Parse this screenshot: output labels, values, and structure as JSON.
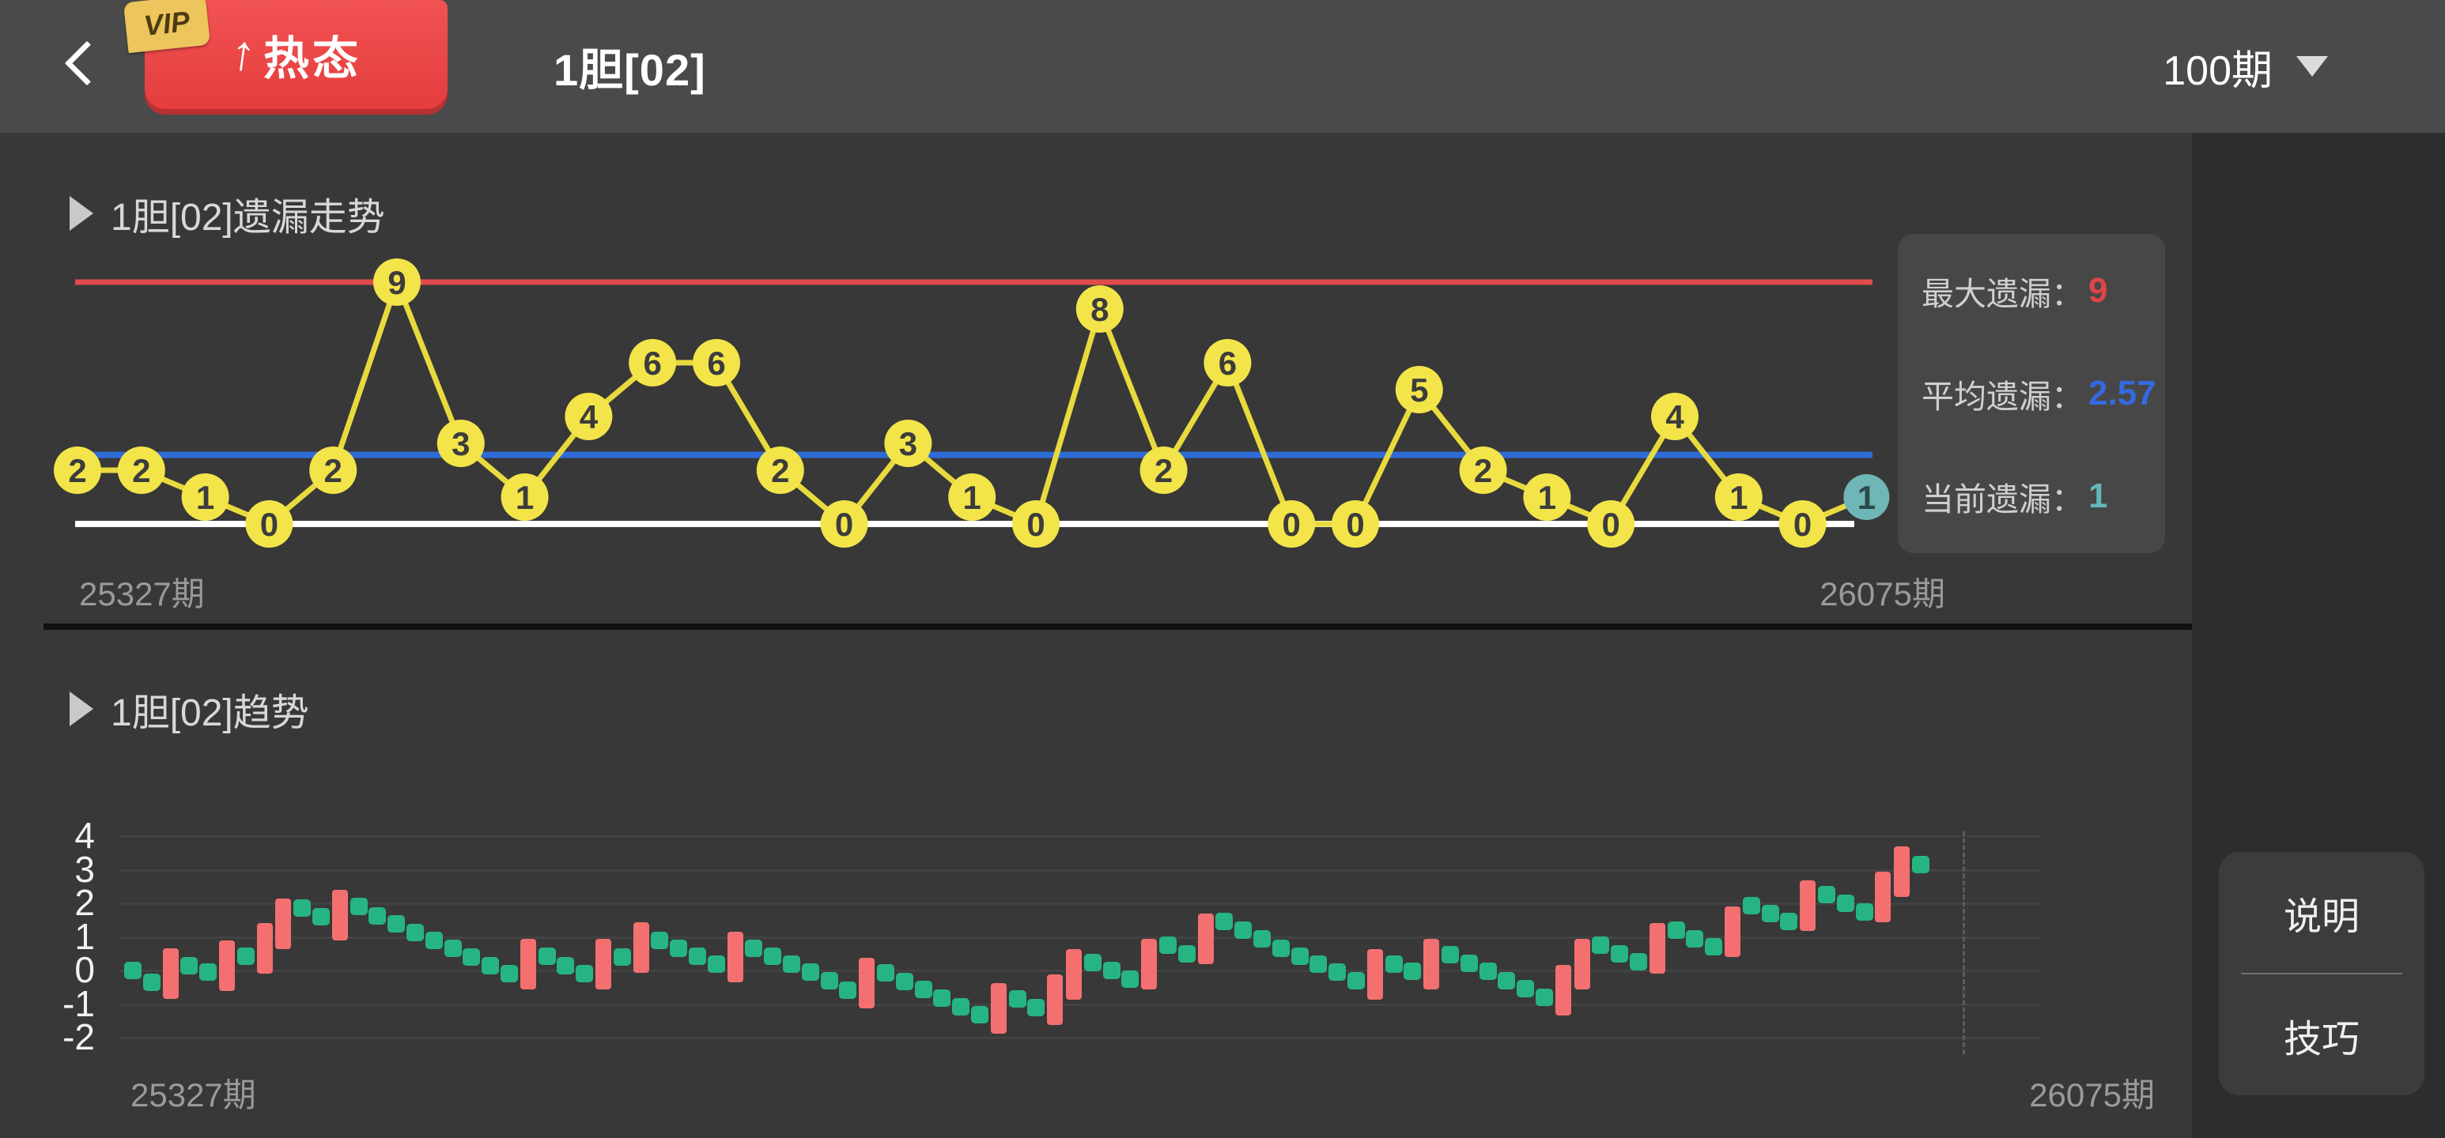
{
  "top_bar": {
    "back_icon": "chevron-left",
    "badge": {
      "vip": "VIP",
      "arrow": "↑",
      "label": "热态"
    },
    "title": "1胆[02]",
    "period_selector": {
      "label": "100期",
      "icon": "caret-down"
    }
  },
  "omission_section": {
    "header": "1胆[02]遗漏走势",
    "x_start_label": "25327期",
    "x_end_label": "26075期",
    "stats": [
      {
        "label": "最大遗漏：",
        "value": "9",
        "color": "#e04545"
      },
      {
        "label": "平均遗漏：",
        "value": "2.57",
        "color": "#3569e0"
      },
      {
        "label": "当前遗漏：",
        "value": "1",
        "color": "#63b7b7"
      }
    ]
  },
  "trend_section": {
    "header": "1胆[02]趋势",
    "x_start_label": "25327期",
    "x_end_label": "26075期",
    "buttons": [
      "说明",
      "技巧"
    ]
  },
  "chart_data": [
    {
      "type": "line",
      "title": "1胆[02]遗漏走势",
      "values": [
        2,
        2,
        1,
        0,
        2,
        9,
        3,
        1,
        4,
        6,
        6,
        2,
        0,
        3,
        1,
        0,
        8,
        2,
        6,
        0,
        0,
        5,
        2,
        1,
        0,
        4,
        1,
        0,
        1
      ],
      "current_index": 28,
      "max_line_value": 9,
      "avg_line_value": 2.57,
      "zero_line_value": 0,
      "x_range": [
        "25327期",
        "26075期"
      ],
      "point_color": "#f3e44a",
      "point_text_color": "#3c3c3c",
      "current_point_color": "#6fb6b6",
      "line_color": "#e8da3e",
      "max_line_color": "#e04b4b",
      "avg_line_color": "#2e6bd6",
      "zero_line_color": "#ffffff"
    },
    {
      "type": "bar",
      "title": "1胆[02]趋势",
      "ylim": [
        -2,
        4
      ],
      "yticks": [
        4,
        3,
        2,
        1,
        0,
        -1,
        -2
      ],
      "grid": true,
      "x_range": [
        "25327期",
        "26075期"
      ],
      "dot_color": "#26b582",
      "bar_color": "#f47070",
      "marks": [
        {
          "t": "d",
          "v": 0.0
        },
        {
          "t": "d",
          "v": -0.35
        },
        {
          "t": "b",
          "v": -0.1
        },
        {
          "t": "d",
          "v": 0.15
        },
        {
          "t": "d",
          "v": -0.05
        },
        {
          "t": "b",
          "v": 0.15
        },
        {
          "t": "d",
          "v": 0.42
        },
        {
          "t": "b",
          "v": 0.65
        },
        {
          "t": "b",
          "v": 1.4
        },
        {
          "t": "d",
          "v": 1.85
        },
        {
          "t": "d",
          "v": 1.6
        },
        {
          "t": "b",
          "v": 1.65
        },
        {
          "t": "d",
          "v": 1.9
        },
        {
          "t": "d",
          "v": 1.62
        },
        {
          "t": "d",
          "v": 1.38
        },
        {
          "t": "d",
          "v": 1.12
        },
        {
          "t": "d",
          "v": 0.9
        },
        {
          "t": "d",
          "v": 0.65
        },
        {
          "t": "d",
          "v": 0.4
        },
        {
          "t": "d",
          "v": 0.15
        },
        {
          "t": "d",
          "v": -0.1
        },
        {
          "t": "b",
          "v": 0.18
        },
        {
          "t": "d",
          "v": 0.43
        },
        {
          "t": "d",
          "v": 0.15
        },
        {
          "t": "d",
          "v": -0.1
        },
        {
          "t": "b",
          "v": 0.18
        },
        {
          "t": "d",
          "v": 0.4
        },
        {
          "t": "b",
          "v": 0.68
        },
        {
          "t": "d",
          "v": 0.9
        },
        {
          "t": "d",
          "v": 0.65
        },
        {
          "t": "d",
          "v": 0.42
        },
        {
          "t": "d",
          "v": 0.2
        },
        {
          "t": "b",
          "v": 0.4
        },
        {
          "t": "d",
          "v": 0.65
        },
        {
          "t": "d",
          "v": 0.42
        },
        {
          "t": "d",
          "v": 0.2
        },
        {
          "t": "d",
          "v": -0.05
        },
        {
          "t": "d",
          "v": -0.3
        },
        {
          "t": "d",
          "v": -0.58
        },
        {
          "t": "b",
          "v": -0.38
        },
        {
          "t": "d",
          "v": -0.08
        },
        {
          "t": "d",
          "v": -0.32
        },
        {
          "t": "d",
          "v": -0.56
        },
        {
          "t": "d",
          "v": -0.82
        },
        {
          "t": "d",
          "v": -1.08
        },
        {
          "t": "d",
          "v": -1.32
        },
        {
          "t": "b",
          "v": -1.12
        },
        {
          "t": "d",
          "v": -0.85
        },
        {
          "t": "d",
          "v": -1.1
        },
        {
          "t": "b",
          "v": -0.88
        },
        {
          "t": "b",
          "v": -0.12
        },
        {
          "t": "d",
          "v": 0.23
        },
        {
          "t": "d",
          "v": 0.0
        },
        {
          "t": "d",
          "v": -0.25
        },
        {
          "t": "b",
          "v": 0.18
        },
        {
          "t": "d",
          "v": 0.75
        },
        {
          "t": "d",
          "v": 0.5
        },
        {
          "t": "b",
          "v": 0.93
        },
        {
          "t": "d",
          "v": 1.45
        },
        {
          "t": "d",
          "v": 1.2
        },
        {
          "t": "d",
          "v": 0.95
        },
        {
          "t": "d",
          "v": 0.65
        },
        {
          "t": "d",
          "v": 0.43
        },
        {
          "t": "d",
          "v": 0.2
        },
        {
          "t": "d",
          "v": -0.05
        },
        {
          "t": "d",
          "v": -0.3
        },
        {
          "t": "b",
          "v": -0.12
        },
        {
          "t": "d",
          "v": 0.2
        },
        {
          "t": "d",
          "v": -0.03
        },
        {
          "t": "b",
          "v": 0.18
        },
        {
          "t": "d",
          "v": 0.48
        },
        {
          "t": "d",
          "v": 0.22
        },
        {
          "t": "d",
          "v": -0.02
        },
        {
          "t": "d",
          "v": -0.3
        },
        {
          "t": "d",
          "v": -0.55
        },
        {
          "t": "d",
          "v": -0.8
        },
        {
          "t": "b",
          "v": -0.58
        },
        {
          "t": "b",
          "v": 0.18
        },
        {
          "t": "d",
          "v": 0.75
        },
        {
          "t": "d",
          "v": 0.5
        },
        {
          "t": "d",
          "v": 0.25
        },
        {
          "t": "b",
          "v": 0.65
        },
        {
          "t": "d",
          "v": 1.2
        },
        {
          "t": "d",
          "v": 0.95
        },
        {
          "t": "d",
          "v": 0.7
        },
        {
          "t": "b",
          "v": 1.15
        },
        {
          "t": "d",
          "v": 1.93
        },
        {
          "t": "d",
          "v": 1.7
        },
        {
          "t": "d",
          "v": 1.45
        },
        {
          "t": "b",
          "v": 1.93
        },
        {
          "t": "d",
          "v": 2.25
        },
        {
          "t": "d",
          "v": 2.0
        },
        {
          "t": "d",
          "v": 1.75
        },
        {
          "t": "b",
          "v": 2.2
        },
        {
          "t": "b",
          "v": 2.95
        },
        {
          "t": "d",
          "v": 3.15
        }
      ]
    }
  ]
}
